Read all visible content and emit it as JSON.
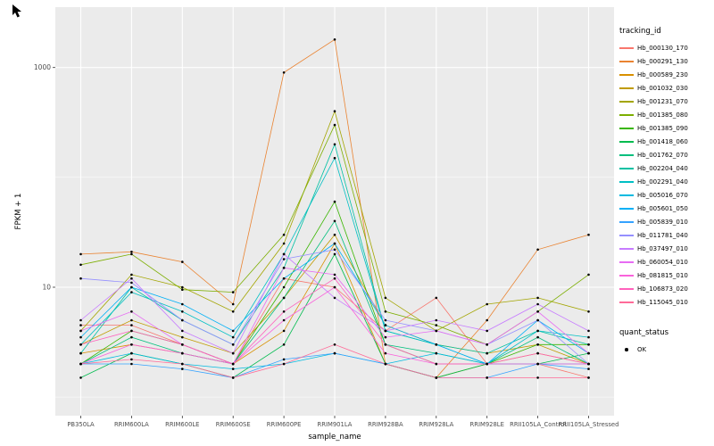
{
  "legend": {
    "tracking_title": "tracking_id",
    "quant_title": "quant_status",
    "quant_value": "OK"
  },
  "chart_data": {
    "type": "line",
    "title": "",
    "xlabel": "sample_name",
    "ylabel": "FPKM + 1",
    "y_scale": "log10",
    "yticks": [
      10,
      1000
    ],
    "y_minor": [
      1,
      100
    ],
    "ylim": [
      0.7,
      3500
    ],
    "panel_bg": "#EBEBEB",
    "grid_color": "#FFFFFF",
    "point_color": "#000000",
    "tick_label_color": "#4D4D4D",
    "categories": [
      "PB350LA",
      "RRIM600LA",
      "RRIM600LE",
      "RRIM600SE",
      "RRIM600PE",
      "RRIM901LA",
      "RRIM928BA",
      "RRIM928LA",
      "RRIM928LE",
      "RRII105LA_Control",
      "RRII105LA_Stressed"
    ],
    "series": [
      {
        "name": "Hb_000130_170",
        "color": "#F8766D",
        "values": [
          4.5,
          4.5,
          3,
          2,
          12,
          10,
          4,
          8,
          2,
          2,
          1.5
        ]
      },
      {
        "name": "Hb_000291_130",
        "color": "#EA8331",
        "values": [
          20,
          21,
          17,
          7,
          900,
          1800,
          2,
          1.5,
          5,
          22,
          30
        ]
      },
      {
        "name": "Hb_000589_230",
        "color": "#D89000",
        "values": [
          2.5,
          3,
          2.5,
          2,
          4,
          25,
          2,
          1.5,
          2,
          2.5,
          2
        ]
      },
      {
        "name": "Hb_001032_030",
        "color": "#C09B00",
        "values": [
          3,
          5,
          3.5,
          2.5,
          8,
          30,
          4.5,
          3,
          2.5,
          3,
          2
        ]
      },
      {
        "name": "Hb_001231_070",
        "color": "#A3A500",
        "values": [
          4,
          13,
          10,
          6,
          25,
          400,
          8,
          4,
          7,
          8,
          6
        ]
      },
      {
        "name": "Hb_001385_080",
        "color": "#7CAE00",
        "values": [
          16,
          20,
          9.5,
          9,
          30,
          300,
          6,
          4.5,
          3,
          6,
          13
        ]
      },
      {
        "name": "Hb_001385_090",
        "color": "#39B600",
        "values": [
          2,
          4,
          3,
          2,
          10,
          60,
          3,
          2,
          2,
          3,
          3
        ]
      },
      {
        "name": "Hb_001418_060",
        "color": "#00BB4E",
        "values": [
          1.5,
          2.5,
          2,
          1.5,
          3,
          20,
          2,
          1.5,
          2,
          2,
          2.5
        ]
      },
      {
        "name": "Hb_001762_070",
        "color": "#00BF7D",
        "values": [
          2,
          3.5,
          2.5,
          2,
          8,
          40,
          3,
          2.5,
          2,
          3.5,
          2
        ]
      },
      {
        "name": "Hb_002204_040",
        "color": "#00C1A3",
        "values": [
          2.5,
          10,
          5,
          3,
          15,
          200,
          4,
          3,
          2.5,
          4,
          3
        ]
      },
      {
        "name": "Hb_002291_040",
        "color": "#00BFC4",
        "values": [
          3,
          9,
          6,
          3.5,
          20,
          150,
          4,
          3,
          2,
          4,
          3.5
        ]
      },
      {
        "name": "Hb_005016_070",
        "color": "#00BAE0",
        "values": [
          2,
          2.5,
          2,
          1.8,
          2,
          2.5,
          2,
          2.5,
          2,
          2,
          2
        ]
      },
      {
        "name": "Hb_005601_050",
        "color": "#00B0F6",
        "values": [
          3.5,
          10,
          7,
          4,
          12,
          25,
          4.5,
          3,
          2,
          5,
          2.5
        ]
      },
      {
        "name": "Hb_005839_010",
        "color": "#35A2FF",
        "values": [
          2,
          2,
          1.8,
          1.5,
          2.2,
          2.5,
          2,
          1.5,
          1.5,
          2,
          1.8
        ]
      },
      {
        "name": "Hb_011781_040",
        "color": "#9590FF",
        "values": [
          12,
          11,
          5,
          3,
          18,
          22,
          5,
          4,
          3,
          5,
          2
        ]
      },
      {
        "name": "Hb_037497_010",
        "color": "#C77CFF",
        "values": [
          5,
          12,
          4,
          2.5,
          20,
          8,
          4,
          5,
          4,
          7,
          4
        ]
      },
      {
        "name": "Hb_060054_010",
        "color": "#E76BF3",
        "values": [
          4,
          6,
          3,
          2,
          15,
          13,
          3.5,
          4,
          3,
          6,
          2.5
        ]
      },
      {
        "name": "Hb_081815_010",
        "color": "#FA62DB",
        "values": [
          2,
          3,
          2.5,
          2,
          5,
          10,
          2.5,
          2,
          2,
          2,
          2
        ]
      },
      {
        "name": "Hb_106873_020",
        "color": "#FF62BC",
        "values": [
          3,
          4,
          3,
          2,
          6,
          12,
          3,
          2,
          2,
          2.5,
          2
        ]
      },
      {
        "name": "Hb_115045_010",
        "color": "#FF6A98",
        "values": [
          2,
          2.2,
          2,
          1.5,
          2,
          3,
          2,
          1.5,
          1.5,
          1.5,
          1.5
        ]
      }
    ],
    "legend_position": "right",
    "grid": true
  }
}
